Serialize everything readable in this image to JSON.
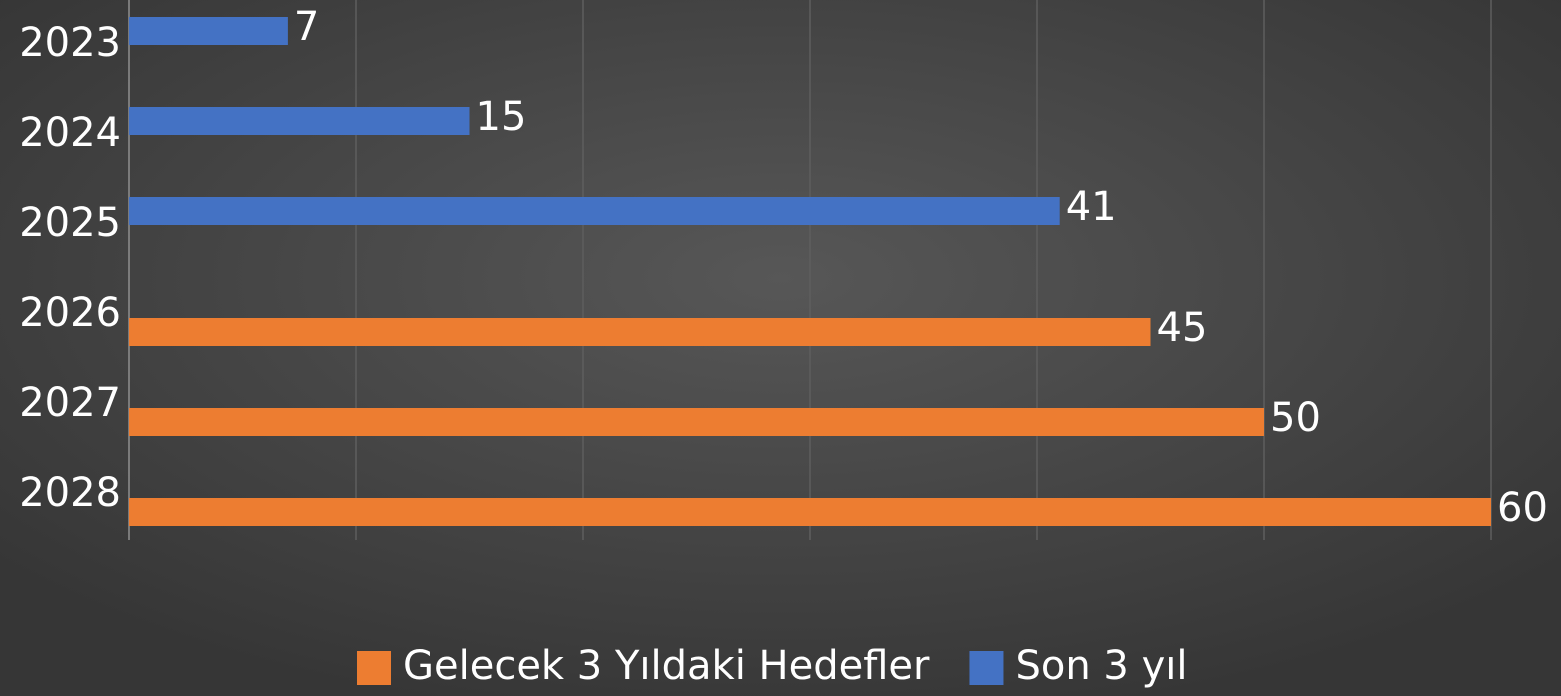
{
  "chart_data": {
    "type": "bar",
    "orientation": "horizontal",
    "categories": [
      "2023",
      "2024",
      "2025",
      "2026",
      "2027",
      "2028"
    ],
    "series": [
      {
        "name": "Gelecek 3 Yıldaki Hedefler",
        "color": "#ed7d31",
        "values": [
          null,
          null,
          null,
          45,
          50,
          60
        ]
      },
      {
        "name": "Son 3 yıl",
        "color": "#4472c4",
        "values": [
          7,
          15,
          41,
          null,
          null,
          null
        ]
      }
    ],
    "xlim": [
      0,
      60
    ],
    "xticks": [
      0,
      10,
      20,
      30,
      40,
      50,
      60
    ],
    "grid": true,
    "legend": "bottom"
  }
}
